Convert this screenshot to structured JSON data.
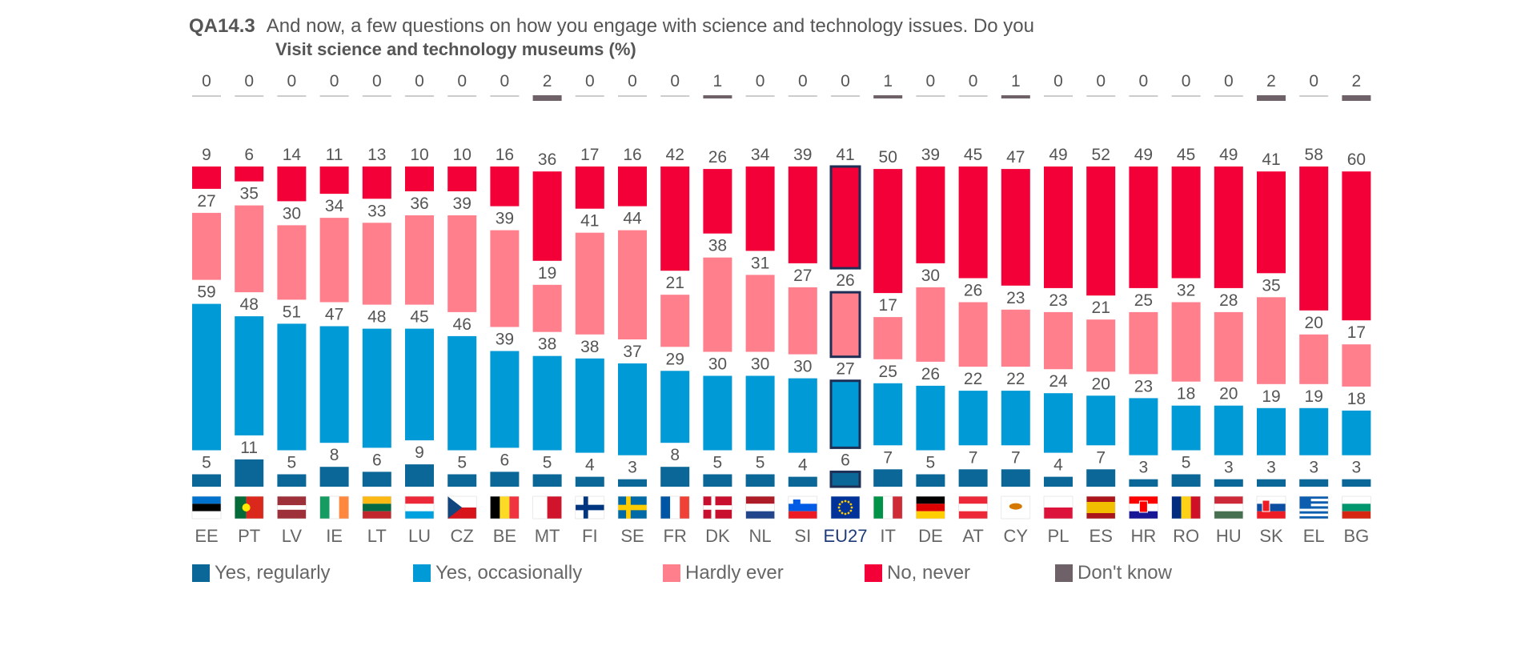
{
  "header": {
    "question_code": "QA14.3",
    "question_text": "And now, a few questions on how you engage with science and technology issues. Do you",
    "subtitle": "Visit science and technology museums  (%)"
  },
  "colors": {
    "yes_regularly": "#0a6797",
    "yes_occasionally": "#009ad6",
    "hardly_ever": "#ff7f8d",
    "no_never": "#f20037",
    "dont_know": "#6e6168",
    "eu_outline": "#1e2f56"
  },
  "chart_data": {
    "type": "bar",
    "stacked": true,
    "orientation": "vertical",
    "categories": [
      "EE",
      "PT",
      "LV",
      "IE",
      "LT",
      "LU",
      "CZ",
      "BE",
      "MT",
      "FI",
      "SE",
      "FR",
      "DK",
      "NL",
      "SI",
      "EU27",
      "IT",
      "DE",
      "AT",
      "CY",
      "PL",
      "ES",
      "HR",
      "RO",
      "HU",
      "SK",
      "EL",
      "BG"
    ],
    "series": [
      {
        "name": "Yes, regularly",
        "values": [
          5,
          11,
          5,
          8,
          6,
          9,
          5,
          6,
          5,
          4,
          3,
          8,
          5,
          5,
          4,
          6,
          7,
          5,
          7,
          7,
          4,
          7,
          3,
          5,
          3,
          3,
          3,
          3
        ]
      },
      {
        "name": "Yes, occasionally",
        "values": [
          59,
          48,
          51,
          47,
          48,
          45,
          46,
          39,
          38,
          38,
          37,
          29,
          30,
          30,
          30,
          27,
          25,
          26,
          22,
          22,
          24,
          20,
          23,
          18,
          20,
          19,
          19,
          18
        ]
      },
      {
        "name": "Hardly ever",
        "values": [
          27,
          35,
          30,
          34,
          33,
          36,
          39,
          39,
          19,
          41,
          44,
          21,
          38,
          31,
          27,
          26,
          17,
          30,
          26,
          23,
          23,
          21,
          25,
          32,
          28,
          35,
          20,
          17
        ]
      },
      {
        "name": "No, never",
        "values": [
          9,
          6,
          14,
          11,
          13,
          10,
          10,
          16,
          36,
          17,
          16,
          42,
          26,
          34,
          39,
          41,
          50,
          39,
          45,
          47,
          49,
          52,
          49,
          45,
          49,
          41,
          58,
          60
        ]
      },
      {
        "name": "Don't know",
        "values": [
          0,
          0,
          0,
          0,
          0,
          0,
          0,
          0,
          2,
          0,
          0,
          0,
          1,
          0,
          0,
          0,
          1,
          0,
          0,
          1,
          0,
          0,
          0,
          0,
          0,
          2,
          0,
          2
        ]
      }
    ],
    "highlight_category": "EU27",
    "flags": [
      "EE",
      "PT",
      "LV",
      "IE",
      "LT",
      "LU",
      "CZ",
      "BE",
      "MT",
      "FI",
      "SE",
      "FR",
      "DK",
      "NL",
      "SI",
      "EU",
      "IT",
      "DE",
      "AT",
      "CY",
      "PL",
      "ES",
      "HR",
      "RO",
      "HU",
      "SK",
      "EL",
      "BG"
    ],
    "legend_position": "bottom",
    "grid": false
  }
}
